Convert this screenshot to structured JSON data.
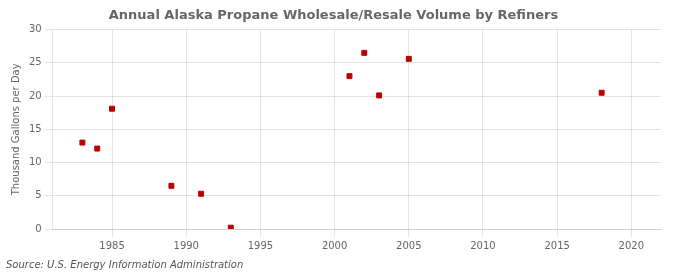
{
  "chart_data": {
    "type": "scatter",
    "title": "Annual Alaska Propane Wholesale/Resale Volume by Refiners",
    "ylabel": "Thousand Gallons per Day",
    "annotation": "Source: U.S. Energy Information Administration",
    "x": [
      1983,
      1984,
      1985,
      1989,
      1991,
      1993,
      2001,
      2002,
      2003,
      2005,
      2018
    ],
    "values": [
      13.0,
      12.1,
      18.1,
      6.5,
      5.3,
      0.2,
      23.0,
      26.5,
      20.1,
      25.6,
      20.5
    ],
    "color": "#bb0000",
    "marker": "square",
    "xlim": [
      1981,
      2022
    ],
    "xticks": [
      1985,
      1990,
      1995,
      2000,
      2005,
      2010,
      2015,
      2020
    ],
    "ylim": [
      0,
      30
    ],
    "yticks": [
      0,
      5,
      10,
      15,
      20,
      25,
      30
    ],
    "grid": true
  }
}
